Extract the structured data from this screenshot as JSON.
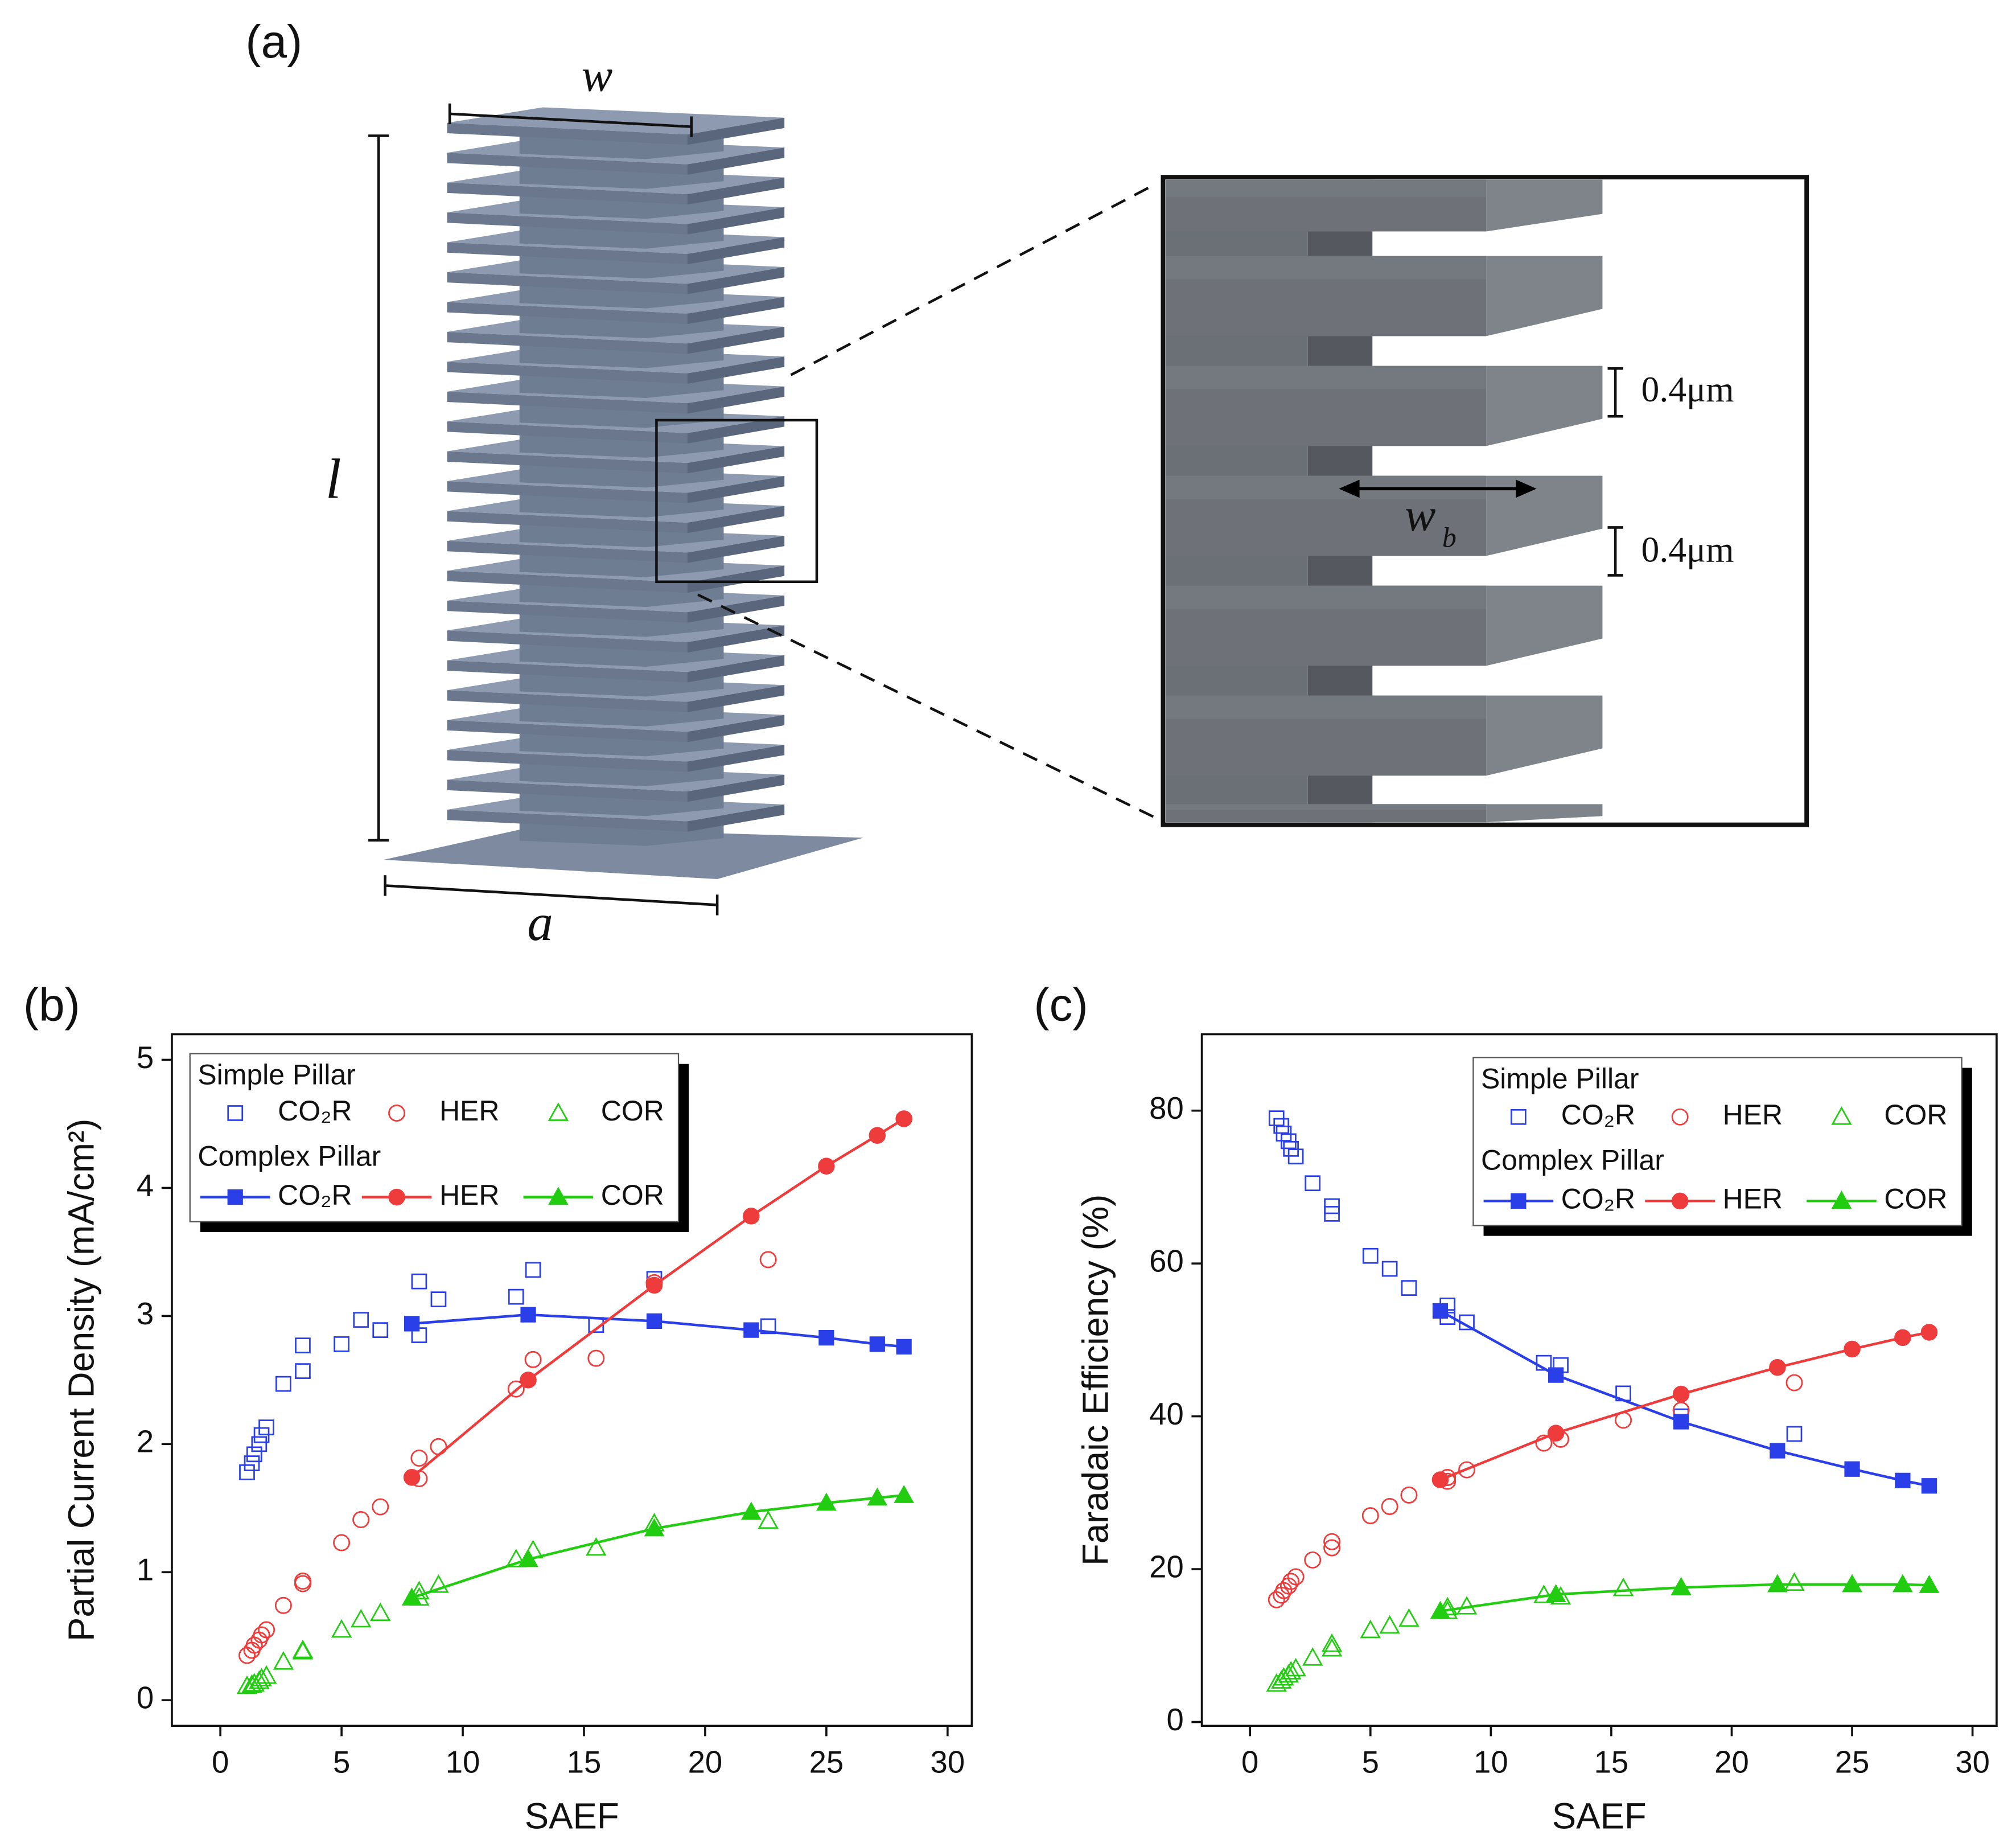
{
  "diagram": {
    "panel_label": "(a)",
    "w": "w",
    "l": "l",
    "a": "a",
    "wb": {
      "main": "w",
      "sub": "b"
    },
    "gap_labels": [
      "0.4μm",
      "0.4μm"
    ]
  },
  "chart_data": [
    {
      "type": "scatter",
      "panel_label": "(b)",
      "xlabel": "SAEF",
      "ylabel": "Partial Current Density (mA/cm²)",
      "xlim": [
        -2,
        31
      ],
      "ylim": [
        -0.2,
        5.2
      ],
      "xticks": [
        0,
        5,
        10,
        15,
        20,
        25,
        30
      ],
      "yticks": [
        0,
        1,
        2,
        3,
        4,
        5
      ],
      "legend_titles": [
        "Simple Pillar",
        "Complex Pillar"
      ],
      "legend": "upper left",
      "series": [
        {
          "name": "CO₂R",
          "color": "#2a3fe8",
          "marker": "square",
          "filled": false,
          "line": false,
          "x": [
            1.1,
            1.3,
            1.4,
            1.6,
            1.7,
            1.9,
            2.6,
            3.4,
            3.4,
            5.0,
            5.8,
            6.6,
            8.2,
            8.2,
            9.0,
            12.2,
            12.9,
            15.5,
            17.9,
            22.6
          ],
          "values": [
            1.78,
            1.85,
            1.92,
            2.0,
            2.07,
            2.13,
            2.47,
            2.57,
            2.77,
            2.78,
            2.97,
            2.89,
            3.27,
            2.85,
            3.13,
            3.15,
            3.36,
            2.93,
            3.29,
            2.92
          ]
        },
        {
          "name": "HER",
          "color": "#ee3b3b",
          "marker": "circle",
          "filled": false,
          "line": false,
          "x": [
            1.1,
            1.3,
            1.4,
            1.6,
            1.7,
            1.9,
            2.6,
            3.4,
            3.4,
            5.0,
            5.8,
            6.6,
            8.2,
            8.2,
            9.0,
            12.2,
            12.9,
            15.5,
            17.9,
            22.6
          ],
          "values": [
            0.35,
            0.39,
            0.43,
            0.47,
            0.51,
            0.55,
            0.74,
            0.91,
            0.93,
            1.23,
            1.41,
            1.51,
            1.89,
            1.73,
            1.98,
            2.43,
            2.66,
            2.67,
            3.26,
            3.44
          ]
        },
        {
          "name": "COR",
          "color": "#22cc11",
          "marker": "triangle",
          "filled": false,
          "line": false,
          "x": [
            1.1,
            1.3,
            1.4,
            1.6,
            1.7,
            1.9,
            2.6,
            3.4,
            3.4,
            5.0,
            5.8,
            6.6,
            8.2,
            8.2,
            9.0,
            12.2,
            12.9,
            15.5,
            17.9,
            22.6
          ],
          "values": [
            0.11,
            0.12,
            0.13,
            0.15,
            0.17,
            0.19,
            0.3,
            0.38,
            0.39,
            0.55,
            0.63,
            0.68,
            0.85,
            0.8,
            0.9,
            1.1,
            1.17,
            1.19,
            1.38,
            1.4
          ]
        },
        {
          "name": "CO₂R",
          "color": "#2a3fe8",
          "marker": "square",
          "filled": true,
          "line": true,
          "x": [
            7.9,
            12.7,
            17.9,
            21.9,
            25.0,
            27.1,
            28.2
          ],
          "values": [
            2.94,
            3.01,
            2.96,
            2.89,
            2.83,
            2.78,
            2.76
          ]
        },
        {
          "name": "HER",
          "color": "#ee3b3b",
          "marker": "circle",
          "filled": true,
          "line": true,
          "x": [
            7.9,
            12.7,
            17.9,
            21.9,
            25.0,
            27.1,
            28.2
          ],
          "values": [
            1.74,
            2.5,
            3.24,
            3.78,
            4.17,
            4.41,
            4.54
          ]
        },
        {
          "name": "COR",
          "color": "#22cc11",
          "marker": "triangle",
          "filled": true,
          "line": true,
          "x": [
            7.9,
            12.7,
            17.9,
            21.9,
            25.0,
            27.1,
            28.2
          ],
          "values": [
            0.8,
            1.1,
            1.34,
            1.47,
            1.54,
            1.58,
            1.6
          ]
        }
      ]
    },
    {
      "type": "scatter",
      "panel_label": "(c)",
      "xlabel": "SAEF",
      "ylabel": "Faradaic Efficiency (%)",
      "xlim": [
        -2,
        31
      ],
      "ylim": [
        -0.5,
        90
      ],
      "xticks": [
        0,
        5,
        10,
        15,
        20,
        25,
        30
      ],
      "yticks": [
        0,
        20,
        40,
        60,
        80
      ],
      "legend_titles": [
        "Simple Pillar",
        "Complex Pillar"
      ],
      "legend": "upper right",
      "series": [
        {
          "name": "CO₂R",
          "color": "#2a3fe8",
          "marker": "square",
          "filled": false,
          "line": false,
          "x": [
            1.1,
            1.3,
            1.4,
            1.6,
            1.7,
            1.9,
            2.6,
            3.4,
            3.4,
            5.0,
            5.8,
            6.6,
            8.2,
            8.2,
            9.0,
            12.2,
            12.9,
            15.5,
            17.9,
            22.6
          ],
          "values": [
            79,
            78,
            77,
            76,
            75,
            74,
            70.5,
            67.5,
            66.5,
            61,
            59.3,
            56.8,
            54.5,
            53,
            52.3,
            47,
            46.7,
            43,
            40,
            37.7
          ]
        },
        {
          "name": "HER",
          "color": "#ee3b3b",
          "marker": "circle",
          "filled": false,
          "line": false,
          "x": [
            1.1,
            1.3,
            1.4,
            1.6,
            1.7,
            1.9,
            2.6,
            3.4,
            3.4,
            5.0,
            5.8,
            6.6,
            8.2,
            8.2,
            9.0,
            12.2,
            12.9,
            15.5,
            17.9,
            22.6
          ],
          "values": [
            16,
            16.6,
            17.2,
            17.8,
            18.4,
            19,
            21.2,
            22.8,
            23.6,
            27,
            28.2,
            29.7,
            31.5,
            32,
            33,
            36.5,
            37,
            39.5,
            40.8,
            44.4
          ]
        },
        {
          "name": "COR",
          "color": "#22cc11",
          "marker": "triangle",
          "filled": false,
          "line": false,
          "x": [
            1.1,
            1.3,
            1.4,
            1.6,
            1.7,
            1.9,
            2.6,
            3.4,
            3.4,
            5.0,
            5.8,
            6.6,
            8.2,
            8.2,
            9.0,
            12.2,
            12.9,
            15.5,
            17.9,
            22.6
          ],
          "values": [
            5,
            5.4,
            5.8,
            6.2,
            6.6,
            7,
            8.4,
            9.6,
            10.2,
            12,
            12.6,
            13.5,
            14.5,
            15,
            15.1,
            16.6,
            16.4,
            17.5,
            17.6,
            18.2
          ]
        },
        {
          "name": "CO₂R",
          "color": "#2a3fe8",
          "marker": "square",
          "filled": true,
          "line": true,
          "x": [
            7.9,
            12.7,
            17.9,
            21.9,
            25.0,
            27.1,
            28.2
          ],
          "values": [
            53.8,
            45.4,
            39.3,
            35.5,
            33.1,
            31.6,
            30.9
          ]
        },
        {
          "name": "HER",
          "color": "#ee3b3b",
          "marker": "circle",
          "filled": true,
          "line": true,
          "x": [
            7.9,
            12.7,
            17.9,
            21.9,
            25.0,
            27.1,
            28.2
          ],
          "values": [
            31.7,
            37.8,
            42.9,
            46.4,
            48.8,
            50.3,
            51
          ]
        },
        {
          "name": "COR",
          "color": "#22cc11",
          "marker": "triangle",
          "filled": true,
          "line": true,
          "x": [
            7.9,
            12.7,
            17.9,
            21.9,
            25.0,
            27.1,
            28.2
          ],
          "values": [
            14.5,
            16.7,
            17.6,
            18,
            18,
            18,
            17.9
          ]
        }
      ]
    }
  ]
}
